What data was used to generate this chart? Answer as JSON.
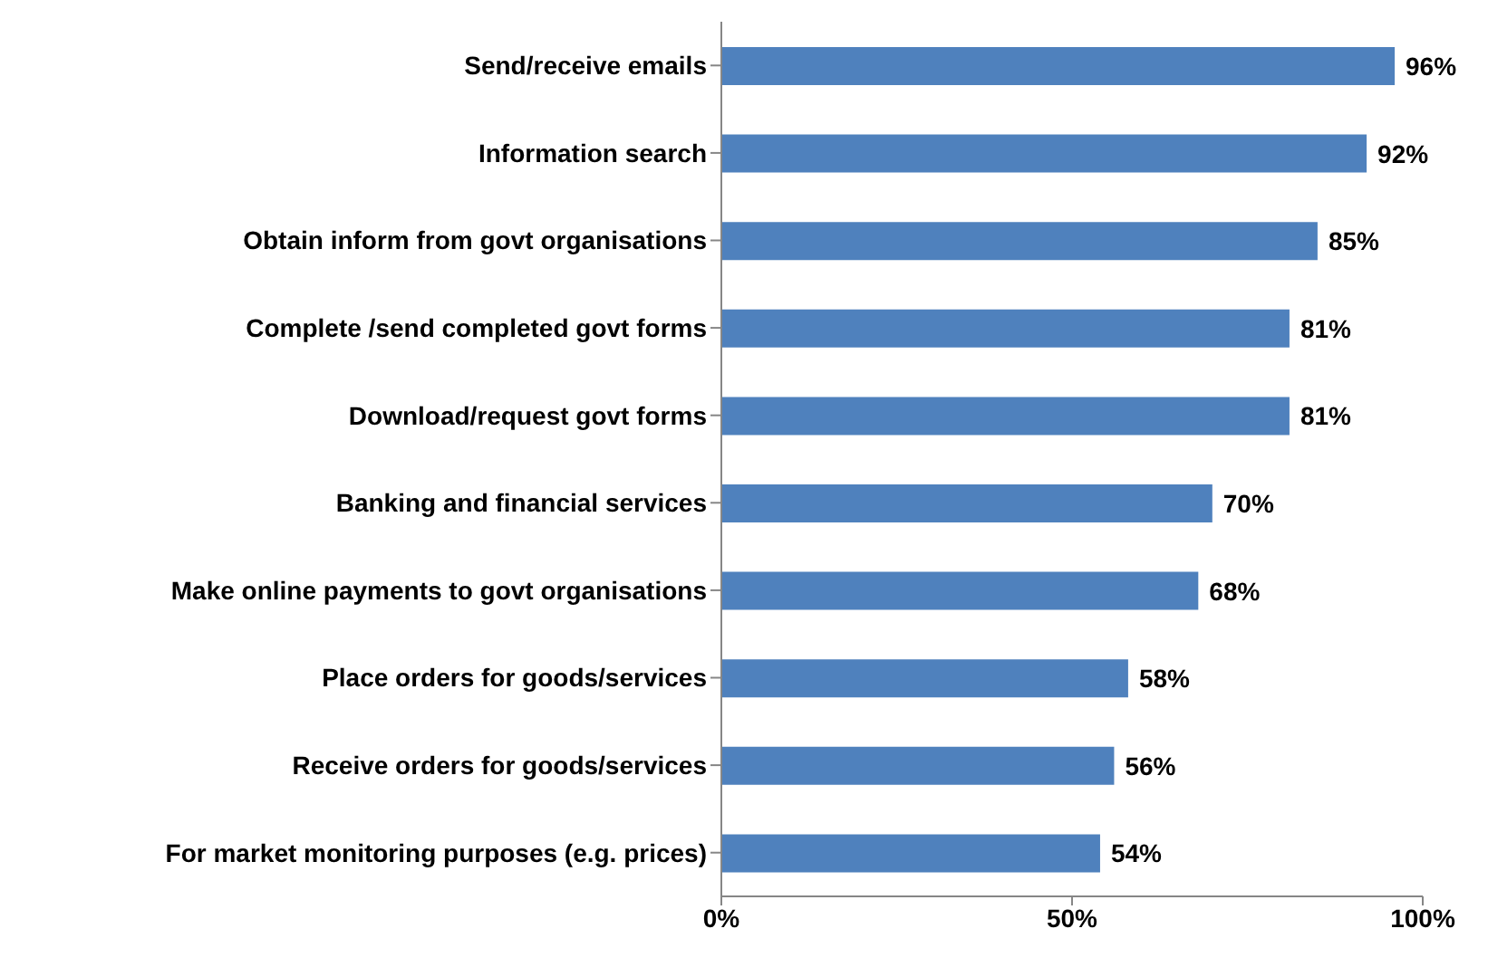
{
  "chart_data": {
    "type": "bar",
    "orientation": "horizontal",
    "categories": [
      "Send/receive emails",
      "Information search",
      "Obtain inform from govt organisations",
      "Complete /send completed govt forms",
      "Download/request govt forms",
      "Banking and financial services",
      "Make online payments to govt organisations",
      "Place orders for goods/services",
      "Receive orders for goods/services",
      "For market monitoring purposes (e.g. prices)"
    ],
    "values": [
      96,
      92,
      85,
      81,
      81,
      70,
      68,
      58,
      56,
      54
    ],
    "value_labels": [
      "96%",
      "92%",
      "85%",
      "81%",
      "81%",
      "70%",
      "68%",
      "58%",
      "56%",
      "54%"
    ],
    "color": "#4f81bd",
    "xlim": [
      0,
      100
    ],
    "xticks": [
      {
        "value": 0,
        "label": "0%"
      },
      {
        "value": 50,
        "label": "50%"
      },
      {
        "value": 100,
        "label": "100%"
      }
    ],
    "grid": false,
    "legend": false
  }
}
